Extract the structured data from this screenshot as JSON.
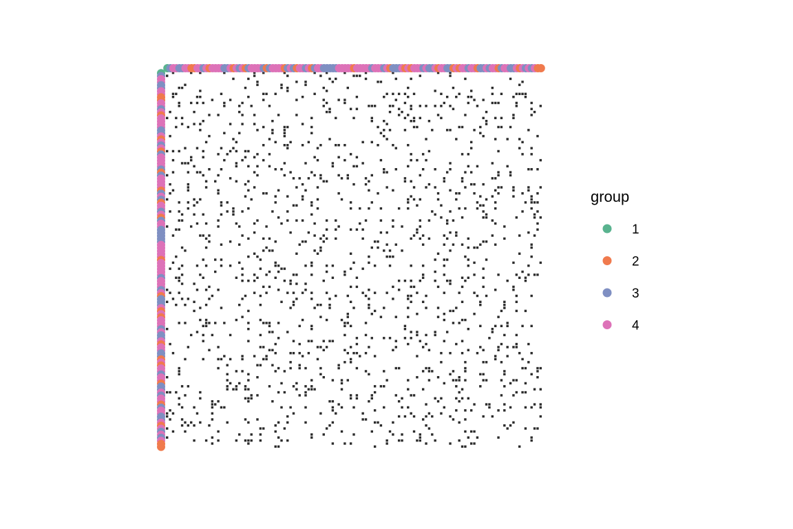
{
  "chart_data": {
    "type": "heatmap",
    "title": "",
    "xlabel": "",
    "ylabel": "",
    "description_type": "adjacency-matrix",
    "n_nodes": 125,
    "cell_color": "#2b2b2b",
    "background_color": "#ffffff",
    "grid": false,
    "axes_visible": false,
    "density": 0.085,
    "legend": {
      "title": "group",
      "position": "right",
      "entries": [
        {
          "label": "1",
          "color": "#59b38f"
        },
        {
          "label": "2",
          "color": "#f07a4d"
        },
        {
          "label": "3",
          "color": "#7f8fc2"
        },
        {
          "label": "4",
          "color": "#dd72b8"
        }
      ]
    },
    "node_groups": [
      1,
      3,
      4,
      4,
      3,
      3,
      4,
      4,
      2,
      2,
      4,
      4,
      3,
      4,
      2,
      4,
      4,
      4,
      4,
      3,
      3,
      4,
      2,
      4,
      3,
      4,
      2,
      3,
      4,
      4,
      4,
      4,
      3,
      2,
      3,
      4,
      4,
      4,
      4,
      2,
      3,
      4,
      3,
      2,
      4,
      4,
      3,
      4,
      2,
      3,
      4,
      4,
      3,
      3,
      3,
      3,
      3,
      4,
      4,
      4,
      4,
      4,
      2,
      4,
      4,
      4,
      4,
      4,
      3,
      4,
      4,
      4,
      3,
      4,
      2,
      3,
      3,
      3,
      4,
      2,
      4,
      2,
      4,
      4,
      4,
      3,
      4,
      3,
      3,
      4,
      2,
      4,
      4,
      3,
      3,
      2,
      4,
      2,
      4,
      4,
      3,
      4,
      4,
      2,
      3,
      3,
      4,
      3,
      4,
      4,
      2,
      3,
      4,
      4,
      3,
      3,
      4,
      2,
      4,
      3,
      4,
      3,
      4,
      2,
      2
    ]
  }
}
